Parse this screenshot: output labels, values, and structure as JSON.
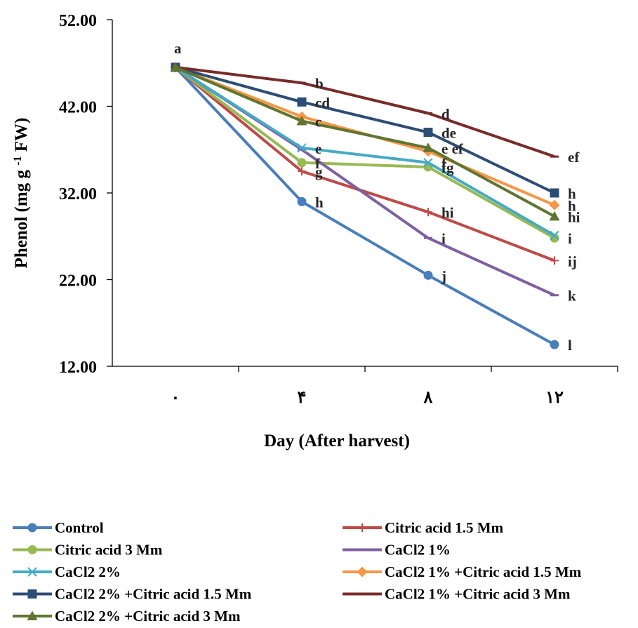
{
  "chart_data": {
    "type": "line",
    "title": "",
    "xlabel": "Day (After harvest)",
    "ylabel": {
      "main": "Phenol (mg g ",
      "sup": "-1",
      "tail": " FW)"
    },
    "categories": [
      "٠",
      "۴",
      "٨",
      "١٢"
    ],
    "ylim": [
      12,
      52
    ],
    "yticks": [
      "12.00",
      "22.00",
      "32.00",
      "42.00",
      "52.00"
    ],
    "grid": false,
    "legend_position": "bottom",
    "series": [
      {
        "name": "Control",
        "color": "#4A7EBB",
        "marker": "circle",
        "values": [
          46.5,
          31,
          22.5,
          14.5
        ],
        "labels": [
          "a",
          "h",
          "j",
          "l"
        ]
      },
      {
        "name": "Citric acid 1.5 Mm",
        "color": "#BE4B48",
        "marker": "plus",
        "values": [
          46.5,
          34.5,
          29.8,
          24.2
        ],
        "labels": [
          "",
          "g",
          "hi",
          "ij"
        ]
      },
      {
        "name": "Citric acid 3 Mm",
        "color": "#98B954",
        "marker": "circle",
        "values": [
          46.5,
          35.5,
          35,
          26.8
        ],
        "labels": [
          "",
          "f",
          "fg",
          "i"
        ]
      },
      {
        "name": "CaCl2 1%",
        "color": "#7D60A0",
        "marker": "dash",
        "values": [
          46.5,
          37,
          26.8,
          20.2
        ],
        "labels": [
          "",
          "",
          "i",
          "k"
        ]
      },
      {
        "name": "CaCl2 2%",
        "color": "#46AAC5",
        "marker": "x",
        "values": [
          46.5,
          37.2,
          35.5,
          27.1
        ],
        "labels": [
          "",
          "e",
          "f",
          ""
        ]
      },
      {
        "name": "CaCl2 1% +Citric acid 1.5 Mm",
        "color": "#F79646",
        "marker": "diamond",
        "values": [
          46.5,
          40.8,
          36.8,
          30.6
        ],
        "labels": [
          "",
          "",
          "",
          "h"
        ]
      },
      {
        "name": "CaCl2 2% +Citric acid 1.5 Mm",
        "color": "#2C4D75",
        "marker": "square",
        "values": [
          46.5,
          42.5,
          39,
          32
        ],
        "labels": [
          "",
          "cd",
          "de",
          "h"
        ]
      },
      {
        "name": "CaCl2 1% +Citric acid 3 Mm",
        "color": "#772C2A",
        "marker": "dash",
        "values": [
          46.5,
          44.7,
          41.2,
          36.2
        ],
        "labels": [
          "",
          "b",
          "d",
          "ef"
        ]
      },
      {
        "name": "CaCl2 2% +Citric acid 3 Mm",
        "color": "#5F7530",
        "marker": "triangle",
        "values": [
          46.5,
          40.3,
          37.2,
          29.3
        ],
        "labels": [
          "",
          "c",
          "e ef",
          "hi"
        ]
      }
    ]
  }
}
